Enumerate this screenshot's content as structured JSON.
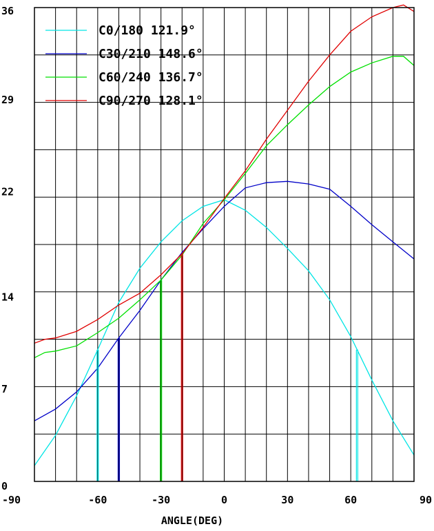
{
  "chart_data": {
    "type": "line",
    "xlabel": "ANGLE(DEG)",
    "ylabel": "",
    "xlim": [
      -90,
      90
    ],
    "ylim": [
      0,
      36
    ],
    "x_ticks": [
      -90,
      -60,
      -30,
      0,
      30,
      60,
      90
    ],
    "y_ticks": [
      0,
      7,
      14,
      22,
      29,
      36
    ],
    "grid": true,
    "legend_position": "top-left",
    "series": [
      {
        "name": "C0/180 121.9°",
        "color": "#00e5e5",
        "x": [
          -90,
          -80,
          -70,
          -60,
          -50,
          -40,
          -30,
          -20,
          -10,
          0,
          10,
          20,
          30,
          40,
          50,
          60,
          70,
          80,
          90
        ],
        "values": [
          1.2,
          3.5,
          6.5,
          10.0,
          13.6,
          16.2,
          18.2,
          19.8,
          20.9,
          21.4,
          20.6,
          19.3,
          17.7,
          16.0,
          13.8,
          11.0,
          7.7,
          4.6,
          2.0
        ],
        "marker_x": [
          -60,
          63
        ]
      },
      {
        "name": "C30/210 148.6°",
        "color": "#0000c8",
        "x": [
          -90,
          -80,
          -70,
          -60,
          -50,
          -40,
          -30,
          -20,
          -10,
          0,
          10,
          20,
          30,
          40,
          50,
          60,
          70,
          80,
          90
        ],
        "values": [
          4.6,
          5.5,
          6.8,
          8.6,
          10.9,
          13.0,
          15.3,
          17.4,
          19.2,
          20.9,
          22.3,
          22.7,
          22.8,
          22.6,
          22.2,
          20.9,
          19.5,
          18.2,
          16.9
        ],
        "marker_x": [
          -50
        ]
      },
      {
        "name": "C60/240 136.7°",
        "color": "#00e000",
        "x": [
          -90,
          -85,
          -80,
          -70,
          -60,
          -50,
          -40,
          -30,
          -20,
          -10,
          0,
          10,
          20,
          30,
          40,
          50,
          60,
          70,
          80,
          85,
          90
        ],
        "values": [
          9.4,
          9.8,
          9.9,
          10.3,
          11.3,
          12.4,
          13.8,
          15.3,
          17.2,
          19.6,
          21.4,
          23.4,
          25.5,
          27.1,
          28.6,
          30.0,
          31.1,
          31.8,
          32.3,
          32.3,
          31.6
        ],
        "marker_x": [
          -30
        ]
      },
      {
        "name": "C90/270 128.1°",
        "color": "#e00000",
        "x": [
          -90,
          -85,
          -80,
          -70,
          -60,
          -50,
          -40,
          -30,
          -20,
          -10,
          0,
          10,
          20,
          30,
          40,
          50,
          60,
          70,
          80,
          85,
          90
        ],
        "values": [
          10.5,
          10.8,
          10.9,
          11.4,
          12.3,
          13.4,
          14.3,
          15.7,
          17.3,
          19.3,
          21.5,
          23.6,
          26.0,
          28.2,
          30.4,
          32.4,
          34.2,
          35.3,
          36.0,
          36.2,
          35.7
        ],
        "marker_x": [
          -20
        ]
      }
    ]
  }
}
